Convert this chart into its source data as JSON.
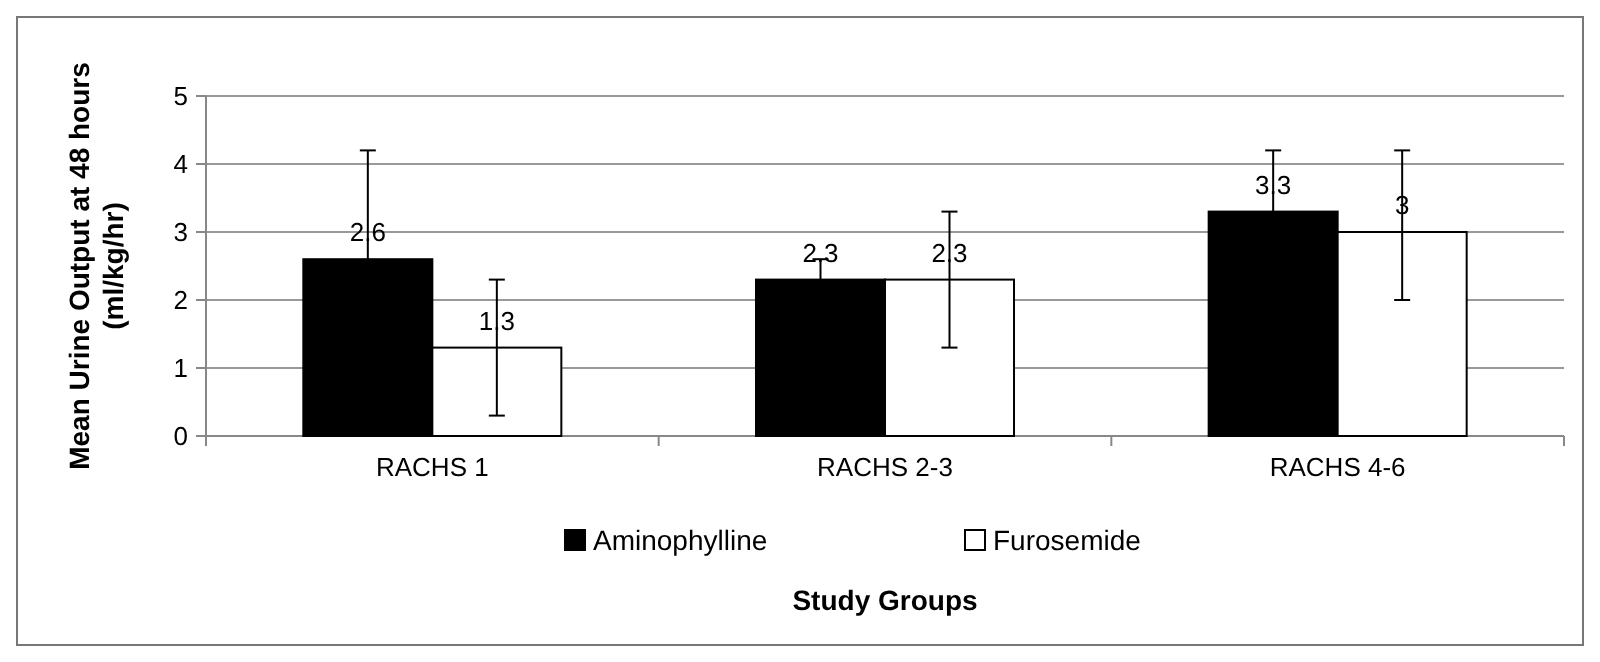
{
  "chart_data": {
    "type": "bar",
    "xlabel": "Study Groups",
    "ylabel": "Mean Urine Output at 48 hours\n(ml/kg/hr)",
    "categories": [
      "RACHS 1",
      "RACHS 2-3",
      "RACHS 4-6"
    ],
    "series": [
      {
        "name": "Aminophylline",
        "color": "#000000",
        "values": [
          2.6,
          2.3,
          3.3
        ],
        "errors": [
          1.6,
          0.3,
          0.9
        ]
      },
      {
        "name": "Furosemide",
        "color": "#ffffff",
        "values": [
          1.3,
          2.3,
          3
        ],
        "errors": [
          1,
          1,
          [
            2,
            4.2
          ]
        ]
      }
    ],
    "ylim": [
      0,
      5
    ],
    "yticks": [
      0,
      1,
      2,
      3,
      4,
      5
    ],
    "grid": "y",
    "legend": "bottom",
    "data_labels": true
  }
}
